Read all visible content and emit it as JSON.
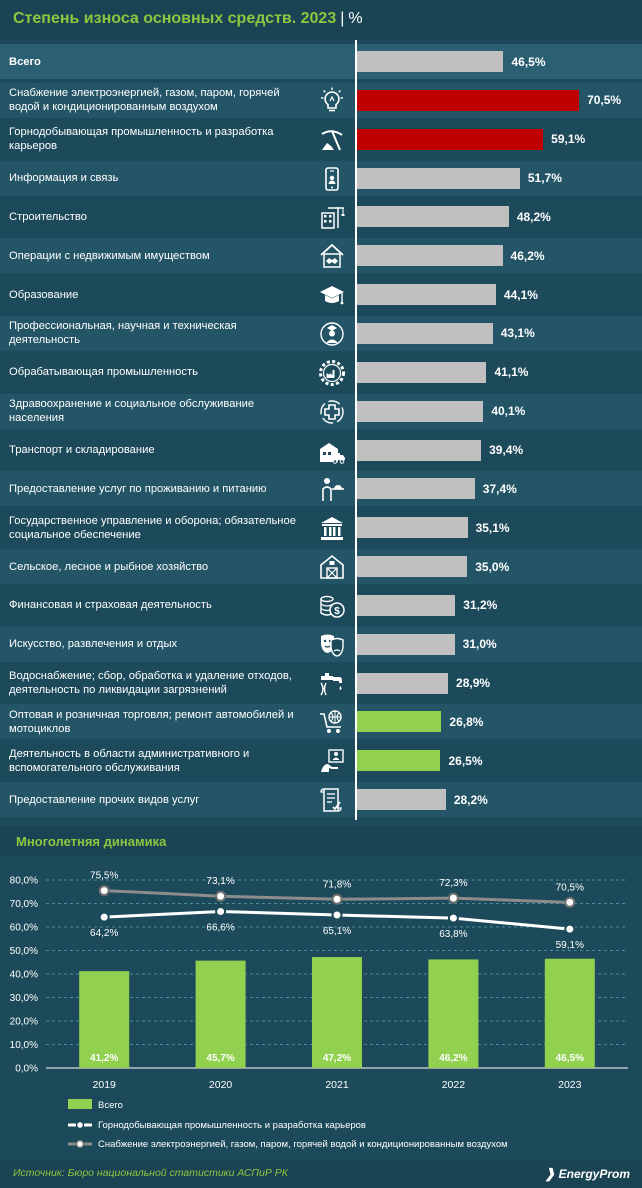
{
  "header": {
    "title": "Степень износа основных средств. 2023",
    "separator": "|",
    "unit": "%"
  },
  "colors": {
    "gray": "#c0c0c0",
    "red": "#c00000",
    "green": "#92d050",
    "title_green": "#8dc63f",
    "gray_line": "#8c8c8c",
    "white_line": "#ffffff"
  },
  "bar_scale_max": 100,
  "rows": [
    {
      "label": "Всего",
      "value": 46.5,
      "display": "46,5%",
      "color": "gray",
      "icon": "",
      "bold": true
    },
    {
      "label": "Снабжение электроэнергией, газом, паром, горячей водой и кондиционированным воздухом",
      "value": 70.5,
      "display": "70,5%",
      "color": "red",
      "icon": "lightbulb-icon"
    },
    {
      "label": "Горнодобывающая промышленность и разработка карьеров",
      "value": 59.1,
      "display": "59,1%",
      "color": "red",
      "icon": "pickaxe-icon"
    },
    {
      "label": "Информация и связь",
      "value": 51.7,
      "display": "51,7%",
      "color": "gray",
      "icon": "smartphone-icon"
    },
    {
      "label": "Строительство",
      "value": 48.2,
      "display": "48,2%",
      "color": "gray",
      "icon": "crane-building-icon"
    },
    {
      "label": "Операции с недвижимым имуществом",
      "value": 46.2,
      "display": "46,2%",
      "color": "gray",
      "icon": "house-handshake-icon"
    },
    {
      "label": "Образование",
      "value": 44.1,
      "display": "44,1%",
      "color": "gray",
      "icon": "graduation-cap-icon"
    },
    {
      "label": "Профессиональная, научная и техническая деятельность",
      "value": 43.1,
      "display": "43,1%",
      "color": "gray",
      "icon": "scientist-icon"
    },
    {
      "label": "Обрабатывающая промышленность",
      "value": 41.1,
      "display": "41,1%",
      "color": "gray",
      "icon": "factory-gear-icon"
    },
    {
      "label": "Здравоохранение и социальное обслуживание населения",
      "value": 40.1,
      "display": "40,1%",
      "color": "gray",
      "icon": "medical-cross-icon"
    },
    {
      "label": "Транспорт и складирование",
      "value": 39.4,
      "display": "39,4%",
      "color": "gray",
      "icon": "truck-warehouse-icon"
    },
    {
      "label": "Предоставление услуг по проживанию и питанию",
      "value": 37.4,
      "display": "37,4%",
      "color": "gray",
      "icon": "waiter-icon"
    },
    {
      "label": "Государственное управление и оборона; обязательное социальное обеспечение",
      "value": 35.1,
      "display": "35,1%",
      "color": "gray",
      "icon": "government-building-icon"
    },
    {
      "label": "Сельское, лесное и рыбное хозяйство",
      "value": 35.0,
      "display": "35,0%",
      "color": "gray",
      "icon": "barn-icon"
    },
    {
      "label": "Финансовая и страховая деятельность",
      "value": 31.2,
      "display": "31,2%",
      "color": "gray",
      "icon": "coins-dollar-icon"
    },
    {
      "label": "Искусство, развлечения и отдых",
      "value": 31.0,
      "display": "31,0%",
      "color": "gray",
      "icon": "theater-masks-icon"
    },
    {
      "label": "Водоснабжение; сбор, обработка и удаление отходов, деятельность по ликвидации загрязнений",
      "value": 28.9,
      "display": "28,9%",
      "color": "gray",
      "icon": "water-tap-icon"
    },
    {
      "label": "Оптовая и розничная торговля; ремонт автомобилей и мотоциклов",
      "value": 26.8,
      "display": "26,8%",
      "color": "green",
      "icon": "shopping-cart-globe-icon"
    },
    {
      "label": "Деятельность в области административного и вспомогательного обслуживания",
      "value": 26.5,
      "display": "26,5%",
      "color": "green",
      "icon": "admin-person-icon"
    },
    {
      "label": "Предоставление прочих видов услуг",
      "value": 28.2,
      "display": "28,2%",
      "color": "gray",
      "icon": "document-checklist-icon"
    }
  ],
  "section2": {
    "title": "Многолетняя динамика"
  },
  "chart_data": {
    "type": "bar",
    "categories": [
      "2019",
      "2020",
      "2021",
      "2022",
      "2023"
    ],
    "ylim": [
      0,
      80
    ],
    "yticks": [
      "0,0%",
      "10,0%",
      "20,0%",
      "30,0%",
      "40,0%",
      "50,0%",
      "60,0%",
      "70,0%",
      "80,0%"
    ],
    "ytick_values": [
      0,
      10,
      20,
      30,
      40,
      50,
      60,
      70,
      80
    ],
    "grid": true,
    "legend_position": "bottom-left",
    "series": [
      {
        "name": "Всего",
        "kind": "bar",
        "color": "#92d050",
        "values": [
          41.2,
          45.7,
          47.2,
          46.2,
          46.5
        ],
        "labels": [
          "41,2%",
          "45,7%",
          "47,2%",
          "46,2%",
          "46,5%"
        ]
      },
      {
        "name": "Горнодобывающая промышленность и разработка карьеров",
        "kind": "line",
        "color": "#ffffff",
        "values": [
          64.2,
          66.6,
          65.1,
          63.8,
          59.1
        ],
        "labels": [
          "64,2%",
          "66,6%",
          "65,1%",
          "63,8%",
          "59,1%"
        ]
      },
      {
        "name": "Снабжение электроэнергией, газом, паром, горячей водой и кондиционированным воздухом",
        "kind": "line",
        "color": "#8c8c8c",
        "values": [
          75.5,
          73.1,
          71.8,
          72.3,
          70.5
        ],
        "labels": [
          "75,5%",
          "73,1%",
          "71,8%",
          "72,3%",
          "70,5%"
        ]
      }
    ]
  },
  "footer": {
    "source": "Источник: Бюро национальной статистики АСПиР РК",
    "logo": "EnergyProm"
  }
}
